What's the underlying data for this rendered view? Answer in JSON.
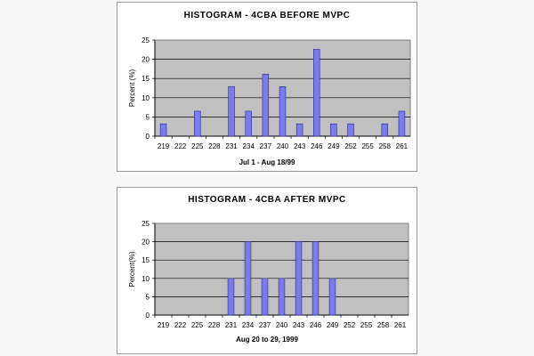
{
  "chart_data": [
    {
      "type": "bar",
      "title": "HISTOGRAM - 4CBA BEFORE MVPC",
      "xlabel": "Jul 1 - Aug 18/99",
      "ylabel": "Percent (%)",
      "ylim": [
        0,
        25
      ],
      "yticks": [
        0,
        5,
        10,
        15,
        20,
        25
      ],
      "grid": true,
      "categories": [
        "219",
        "222",
        "225",
        "228",
        "231",
        "234",
        "237",
        "240",
        "243",
        "246",
        "249",
        "252",
        "255",
        "258",
        "261"
      ],
      "values": [
        3.2,
        0,
        6.5,
        0,
        12.9,
        6.5,
        16.1,
        12.9,
        3.2,
        22.6,
        3.2,
        3.2,
        0,
        3.2,
        6.5
      ],
      "colors": {
        "bar": "#7b7bee",
        "bar_stroke": "#2a2a80",
        "plot_bg": "#c0c0c0"
      }
    },
    {
      "type": "bar",
      "title": "HISTOGRAM - 4CBA AFTER MVPC",
      "xlabel": "Aug 20 to 29, 1999",
      "ylabel": "Percent(%)",
      "ylim": [
        0,
        25
      ],
      "yticks": [
        0,
        5,
        10,
        15,
        20,
        25
      ],
      "grid": true,
      "categories": [
        "219",
        "222",
        "225",
        "228",
        "231",
        "234",
        "237",
        "240",
        "243",
        "246",
        "249",
        "252",
        "255",
        "258",
        "261"
      ],
      "values": [
        0,
        0,
        0,
        0,
        10,
        20,
        10,
        10,
        20,
        20,
        10,
        0,
        0,
        0,
        0
      ],
      "colors": {
        "bar": "#7b7bee",
        "bar_stroke": "#2a2a80",
        "plot_bg": "#c0c0c0"
      }
    }
  ]
}
